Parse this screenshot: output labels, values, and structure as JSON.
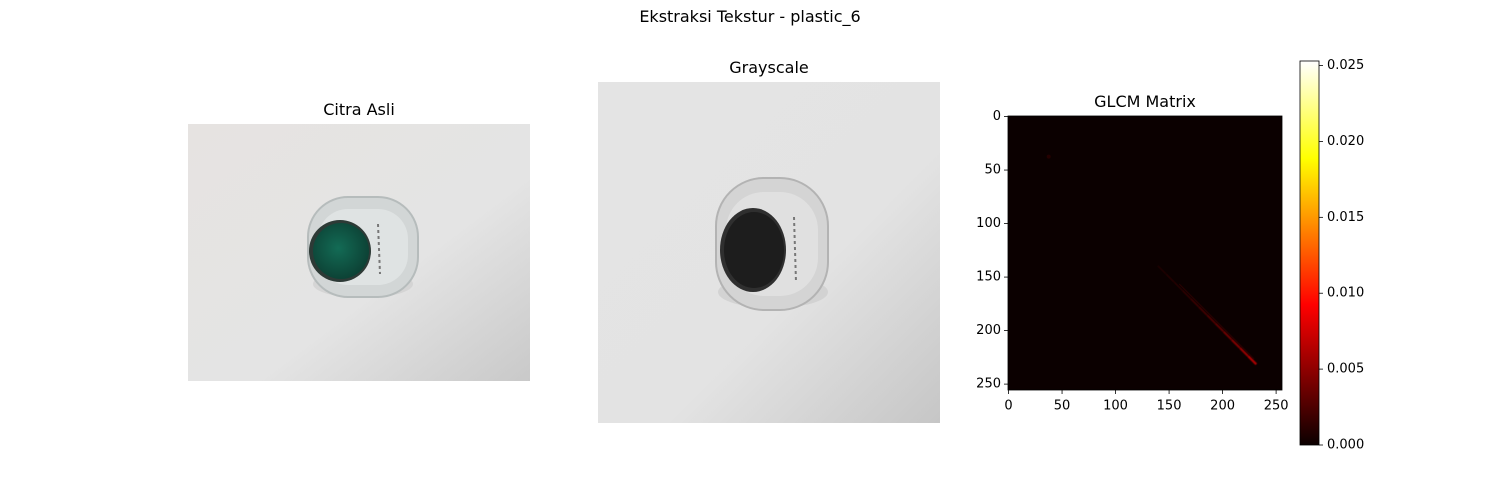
{
  "figure": {
    "suptitle": "Ekstraksi Tekstur - plastic_6"
  },
  "panels": [
    {
      "title": "Citra Asli",
      "image": "original-photo-of-plastic-bottle-with-green-cap"
    },
    {
      "title": "Grayscale",
      "image": "grayscale-photo-of-plastic-bottle"
    },
    {
      "title": "GLCM Matrix"
    }
  ],
  "chart_data": {
    "type": "heatmap",
    "title": "GLCM Matrix",
    "xlabel": "",
    "ylabel": "",
    "xlim": [
      0,
      255
    ],
    "ylim": [
      255,
      0
    ],
    "x_ticks": [
      "0",
      "50",
      "100",
      "150",
      "200",
      "250"
    ],
    "y_ticks": [
      "0",
      "50",
      "100",
      "150",
      "200",
      "250"
    ],
    "colormap": "hot",
    "colorbar": {
      "range": [
        0.0,
        0.0253
      ],
      "ticks": [
        "0.000",
        "0.005",
        "0.010",
        "0.015",
        "0.020",
        "0.025"
      ]
    },
    "nonzero_regions": [
      {
        "description": "diagonal band",
        "from": [
          140,
          140
        ],
        "to": [
          232,
          232
        ],
        "peak_value": 0.006
      },
      {
        "description": "faint spot",
        "at": [
          38,
          38
        ],
        "value": 0.001
      }
    ]
  },
  "colors": {
    "background": "#ffffff",
    "colormap_stops": [
      "#0b0000",
      "#ff0000",
      "#ffff00",
      "#ffffff"
    ]
  }
}
